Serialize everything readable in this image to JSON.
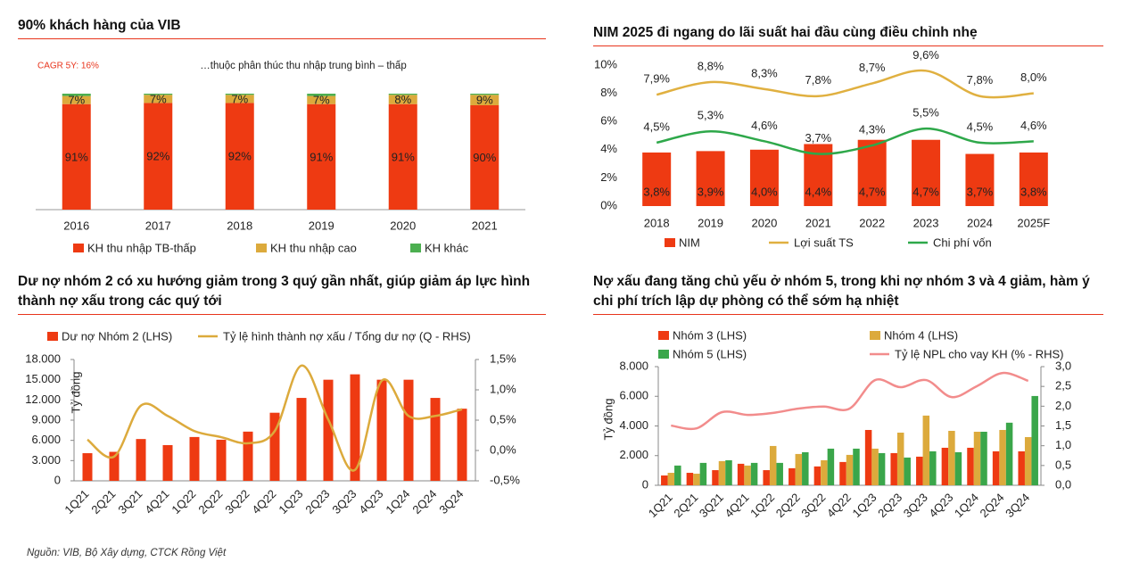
{
  "source": "Nguồn: VIB, Bộ Xây dựng, CTCK Rồng Việt",
  "chart_data": [
    {
      "type": "bar",
      "stacked": true,
      "title": "90% khách hàng của VIB",
      "annotation": "CAGR 5Y: 16%",
      "subtitle": "…thuộc phân thúc thu nhập trung bình – thấp",
      "categories": [
        "2016",
        "2017",
        "2018",
        "2019",
        "2020",
        "2021"
      ],
      "series": [
        {
          "name": "KH thu nhập TB-thấp",
          "color": "#ee3a12",
          "values": [
            91,
            92,
            92,
            91,
            91,
            90
          ],
          "value_labels": [
            "91%",
            "92%",
            "92%",
            "91%",
            "91%",
            "90%"
          ]
        },
        {
          "name": "KH thu nhập cao",
          "color": "#dcaa3c",
          "values": [
            7,
            7,
            7,
            7,
            8,
            9
          ],
          "value_labels": [
            "7%",
            "7%",
            "7%",
            "7%",
            "8%",
            "9%"
          ]
        },
        {
          "name": "KH khác",
          "color": "#4caf50",
          "values": [
            2,
            1,
            1,
            2,
            1,
            1
          ]
        }
      ],
      "legend": "bottom"
    },
    {
      "type": "bar",
      "title": "NIM 2025 đi ngang do lãi suất hai đầu cùng điều chỉnh nhẹ",
      "categories": [
        "2018",
        "2019",
        "2020",
        "2021",
        "2022",
        "2023",
        "2024",
        "2025F"
      ],
      "series": [
        {
          "name": "NIM",
          "type": "bar",
          "color": "#ee3a12",
          "values": [
            3.8,
            3.9,
            4.0,
            4.4,
            4.7,
            4.7,
            3.7,
            3.8
          ],
          "value_labels": [
            "3,8%",
            "3,9%",
            "4,0%",
            "4,4%",
            "4,7%",
            "4,7%",
            "3,7%",
            "3,8%"
          ]
        },
        {
          "name": "Lợi suất TS",
          "type": "line",
          "color": "#e0b040",
          "values": [
            7.9,
            8.8,
            8.3,
            7.8,
            8.7,
            9.6,
            7.8,
            8.0
          ],
          "value_labels": [
            "7,9%",
            "8,8%",
            "8,3%",
            "7,8%",
            "8,7%",
            "9,6%",
            "7,8%",
            "8,0%"
          ]
        },
        {
          "name": "Chi phí vốn",
          "type": "line",
          "color": "#2ea84a",
          "values": [
            4.5,
            5.3,
            4.6,
            3.7,
            4.3,
            5.5,
            4.5,
            4.6
          ],
          "value_labels": [
            "4,5%",
            "5,3%",
            "4,6%",
            "3,7%",
            "4,3%",
            "5,5%",
            "4,5%",
            "4,6%"
          ]
        }
      ],
      "ylim": [
        0,
        10
      ],
      "yticks": [
        {
          "value": 0,
          "label": "0%"
        },
        {
          "value": 2,
          "label": "2%"
        },
        {
          "value": 4,
          "label": "4%"
        },
        {
          "value": 6,
          "label": "6%"
        },
        {
          "value": 8,
          "label": "8%"
        },
        {
          "value": 10,
          "label": "10%"
        }
      ],
      "smooth": true,
      "legend": "bottom"
    },
    {
      "type": "bar",
      "title": "Dư nợ nhóm 2 có xu hướng giảm trong 3 quý gần nhất, giúp giảm áp lực hình thành nợ xấu trong các quý tới",
      "y_label": "Tỷ đồng",
      "categories": [
        "1Q21",
        "2Q21",
        "3Q21",
        "4Q21",
        "1Q22",
        "2Q22",
        "3Q22",
        "4Q22",
        "1Q23",
        "2Q23",
        "3Q23",
        "4Q23",
        "1Q24",
        "2Q24",
        "3Q24"
      ],
      "series": [
        {
          "name": "Dư nợ Nhóm 2 (LHS)",
          "type": "bar",
          "color": "#ee3a12",
          "values": [
            4100,
            4300,
            6200,
            5300,
            6500,
            6100,
            7300,
            10100,
            12300,
            15000,
            15800,
            15000,
            15000,
            12300,
            10700
          ]
        },
        {
          "name": "Tỷ lệ hình thành nợ xấu / Tổng dư nợ (Q - RHS)",
          "type": "line",
          "axis": "y2",
          "color": "#dcaa3c",
          "values": [
            0.18,
            -0.1,
            0.74,
            0.57,
            0.32,
            0.22,
            0.12,
            0.32,
            1.4,
            0.51,
            -0.32,
            1.15,
            0.57,
            0.57,
            0.68
          ]
        }
      ],
      "ylim": [
        0,
        18000
      ],
      "yticks": [
        0,
        {
          "value": 3000,
          "label": "3.000"
        },
        {
          "value": 6000,
          "label": "6.000"
        },
        {
          "value": 9000,
          "label": "9.000"
        },
        {
          "value": 12000,
          "label": "12.000"
        },
        {
          "value": 15000,
          "label": "15.000"
        },
        {
          "value": 18000,
          "label": "18.000"
        }
      ],
      "y2lim": [
        -0.5,
        1.5
      ],
      "y2ticks": [
        {
          "value": -0.5,
          "label": "-0,5%"
        },
        {
          "value": 0,
          "label": "0,0%"
        },
        {
          "value": 0.5,
          "label": "0,5%"
        },
        {
          "value": 1,
          "label": "1,0%"
        },
        {
          "value": 1.5,
          "label": "1,5%"
        }
      ],
      "smooth": true,
      "legend": "top"
    },
    {
      "type": "bar",
      "title": "Nợ xấu đang tăng chủ yếu ở nhóm 5, trong khi nợ nhóm 3 và 4 giảm, hàm ý chi phí trích lập dự phòng có thể sớm hạ nhiệt",
      "y_label": "Tỷ đồng",
      "categories": [
        "1Q21",
        "2Q21",
        "3Q21",
        "4Q21",
        "1Q22",
        "2Q22",
        "3Q22",
        "4Q22",
        "1Q23",
        "2Q23",
        "3Q23",
        "4Q23",
        "1Q24",
        "2Q24",
        "3Q24"
      ],
      "series": [
        {
          "name": "Nhóm 3 (LHS)",
          "type": "bar",
          "color": "#ee3a12",
          "values": [
            660,
            840,
            1020,
            1450,
            1020,
            1150,
            1270,
            1570,
            3730,
            2170,
            1930,
            2530,
            2530,
            2290,
            2290
          ]
        },
        {
          "name": "Nhóm 4 (LHS)",
          "type": "bar",
          "color": "#dcaa3c",
          "values": [
            840,
            780,
            1630,
            1330,
            2650,
            2110,
            1690,
            2050,
            2470,
            3550,
            4700,
            3670,
            3610,
            3730,
            3250
          ]
        },
        {
          "name": "Nhóm 5 (LHS)",
          "type": "bar",
          "color": "#3aa64a",
          "values": [
            1330,
            1510,
            1690,
            1510,
            1510,
            2230,
            2470,
            2470,
            2170,
            1870,
            2290,
            2230,
            3610,
            4220,
            6020
          ]
        },
        {
          "name": "Tỷ lệ NPL cho vay KH (% - RHS)",
          "type": "line",
          "axis": "y2",
          "color": "#f28c8c",
          "values": [
            1.51,
            1.44,
            1.85,
            1.78,
            1.83,
            1.94,
            1.99,
            1.94,
            2.66,
            2.48,
            2.66,
            2.23,
            2.51,
            2.84,
            2.64
          ]
        }
      ],
      "ylim": [
        0,
        8000
      ],
      "yticks": [
        0,
        {
          "value": 2000,
          "label": "2.000"
        },
        {
          "value": 4000,
          "label": "4.000"
        },
        {
          "value": 6000,
          "label": "6.000"
        },
        {
          "value": 8000,
          "label": "8.000"
        }
      ],
      "y2lim": [
        0,
        3
      ],
      "y2ticks": [
        {
          "value": 0,
          "label": "0,0"
        },
        {
          "value": 0.5,
          "label": "0,5"
        },
        {
          "value": 1,
          "label": "1,0"
        },
        {
          "value": 1.5,
          "label": "1,5"
        },
        {
          "value": 2,
          "label": "2,0"
        },
        {
          "value": 2.5,
          "label": "2,5"
        },
        {
          "value": 3,
          "label": "3,0"
        }
      ],
      "smooth": true,
      "legend": "top"
    }
  ]
}
